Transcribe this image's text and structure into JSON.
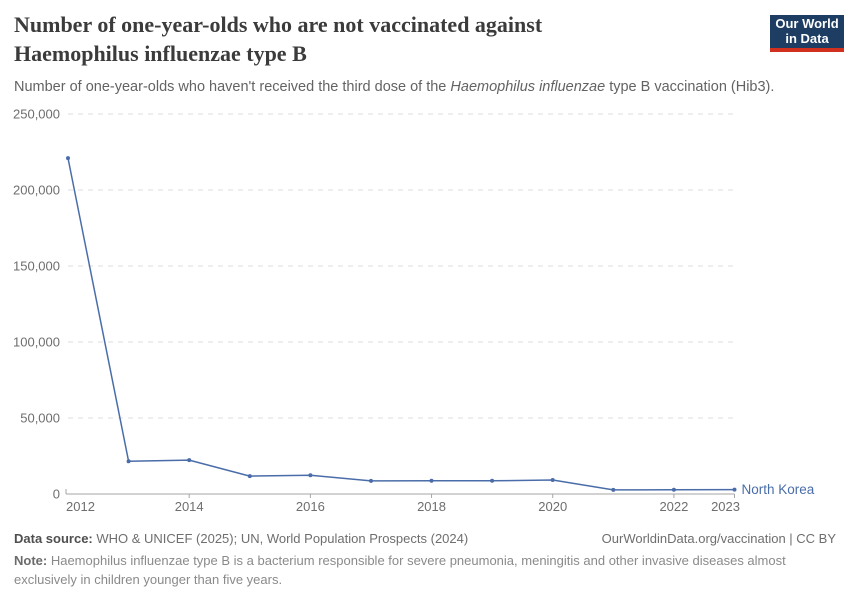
{
  "header": {
    "title": "Number of one-year-olds who are not vaccinated against Haemophilus influenzae type B",
    "subtitle_prefix": "Number of one-year-olds who haven't received the third dose of the ",
    "subtitle_italic": "Haemophilus influenzae",
    "subtitle_suffix": " type B vaccination (Hib3).",
    "logo": {
      "line1": "Our World",
      "line2": "in Data"
    }
  },
  "footer": {
    "source_label": "Data source:",
    "source_text": " WHO & UNICEF (2025); UN, World Population Prospects (2024)",
    "link_text": "OurWorldinData.org/vaccination | CC BY",
    "note_label": "Note:",
    "note_text": " Haemophilus influenzae type B is a bacterium responsible for severe pneumonia, meningitis and other invasive diseases almost exclusively in children younger than five years."
  },
  "colors": {
    "line": "#4a6da9",
    "entity_label": "#4a6da9",
    "grid": "#dddddd",
    "axis": "#a5a5a5",
    "tick_label": "#6e6e6e",
    "logo_bg": "#1d3d63",
    "logo_stripe": "#d1301f"
  },
  "chart_data": {
    "type": "line",
    "title": "Number of one-year-olds who are not vaccinated against Haemophilus influenzae type B",
    "xlabel": "",
    "ylabel": "",
    "x": [
      2012,
      2013,
      2014,
      2015,
      2016,
      2017,
      2018,
      2019,
      2020,
      2021,
      2022,
      2023
    ],
    "series": [
      {
        "name": "North Korea",
        "values": [
          221000,
          21500,
          22300,
          11800,
          12400,
          8600,
          8700,
          8700,
          9200,
          2700,
          2750,
          2900
        ]
      }
    ],
    "xticks": [
      2012,
      2014,
      2016,
      2018,
      2020,
      2022,
      2023
    ],
    "yticks": [
      0,
      50000,
      100000,
      150000,
      200000,
      250000
    ],
    "xlim": [
      2012,
      2023
    ],
    "ylim": [
      0,
      250000
    ],
    "grid": "horizontal-dashed",
    "legend": "line-end-label"
  }
}
